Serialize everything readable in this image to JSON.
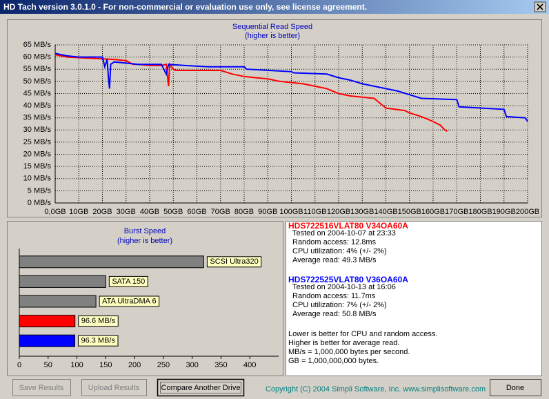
{
  "window": {
    "title": "HD Tach version 3.0.1.0  - For non-commercial or evaluation use only, see license agreement."
  },
  "chart_data": [
    {
      "type": "line",
      "title": "Sequential Read Speed",
      "subtitle": "(higher is better)",
      "xlim": [
        0,
        200
      ],
      "ylim": [
        0,
        65
      ],
      "grid": true,
      "xticks": [
        {
          "value": 0,
          "label": "0,0GB"
        },
        {
          "value": 10,
          "label": "10GB"
        },
        {
          "value": 20,
          "label": "20GB"
        },
        {
          "value": 30,
          "label": "30GB"
        },
        {
          "value": 40,
          "label": "40GB"
        },
        {
          "value": 50,
          "label": "50GB"
        },
        {
          "value": 60,
          "label": "60GB"
        },
        {
          "value": 70,
          "label": "70GB"
        },
        {
          "value": 80,
          "label": "80GB"
        },
        {
          "value": 90,
          "label": "90GB"
        },
        {
          "value": 100,
          "label": "100GB"
        },
        {
          "value": 110,
          "label": "110GB"
        },
        {
          "value": 120,
          "label": "120GB"
        },
        {
          "value": 130,
          "label": "130GB"
        },
        {
          "value": 140,
          "label": "140GB"
        },
        {
          "value": 150,
          "label": "150GB"
        },
        {
          "value": 160,
          "label": "160GB"
        },
        {
          "value": 170,
          "label": "170GB"
        },
        {
          "value": 180,
          "label": "180GB"
        },
        {
          "value": 190,
          "label": "190GB"
        },
        {
          "value": 200,
          "label": "200GB"
        }
      ],
      "yticks": [
        {
          "value": 0,
          "label": "0 MB/s"
        },
        {
          "value": 5,
          "label": "5 MB/s"
        },
        {
          "value": 10,
          "label": "10 MB/s"
        },
        {
          "value": 15,
          "label": "15 MB/s"
        },
        {
          "value": 20,
          "label": "20 MB/s"
        },
        {
          "value": 25,
          "label": "25 MB/s"
        },
        {
          "value": 30,
          "label": "30 MB/s"
        },
        {
          "value": 35,
          "label": "35 MB/s"
        },
        {
          "value": 40,
          "label": "40 MB/s"
        },
        {
          "value": 45,
          "label": "45 MB/s"
        },
        {
          "value": 50,
          "label": "50 MB/s"
        },
        {
          "value": 55,
          "label": "55 MB/s"
        },
        {
          "value": 60,
          "label": "60 MB/s"
        },
        {
          "value": 65,
          "label": "65 MB/s"
        }
      ],
      "series": [
        {
          "name": "HDS722516VLAT80 V34OA60A",
          "color": "#ff0000",
          "x": [
            0,
            5,
            15,
            25,
            30,
            33,
            35,
            40,
            45,
            47,
            48,
            48.5,
            50,
            51,
            70,
            75,
            80,
            85,
            90,
            95,
            100,
            105,
            110,
            115,
            120,
            125,
            130,
            135,
            140,
            148,
            150,
            155,
            160,
            163,
            165,
            166
          ],
          "values": [
            61,
            60,
            59.5,
            59,
            58.5,
            57,
            57,
            56.5,
            56.5,
            57,
            48,
            57,
            55,
            54.5,
            54.5,
            53,
            52,
            51.5,
            51,
            50,
            49.5,
            49,
            48,
            47,
            45,
            44,
            43.5,
            43,
            39,
            38,
            37,
            35.5,
            33.5,
            32,
            30,
            29.5
          ]
        },
        {
          "name": "HDS722525VLAT80 V36OA60A",
          "color": "#0000ff",
          "x": [
            0,
            5,
            10,
            20,
            21,
            22,
            22.5,
            23,
            23.5,
            25,
            30,
            35,
            40,
            45,
            47,
            48,
            55,
            65,
            80,
            81,
            100,
            101,
            115,
            120,
            125,
            130,
            135,
            140,
            145,
            150,
            155,
            170,
            171,
            190,
            191,
            199,
            200
          ],
          "values": [
            61.5,
            60.5,
            60,
            60,
            56,
            59,
            52,
            47,
            57,
            58,
            57.5,
            57,
            57,
            57,
            53,
            57,
            56.5,
            56,
            56,
            55,
            54,
            53.5,
            53,
            51.5,
            50.5,
            49,
            48,
            47,
            46,
            44.5,
            43,
            42.5,
            39.5,
            38.5,
            35.5,
            35,
            33.5
          ]
        }
      ]
    },
    {
      "type": "bar",
      "orientation": "horizontal",
      "title": "Burst Speed",
      "subtitle": "(higher is better)",
      "categories": [
        "SCSI Ultra320",
        "SATA 150",
        "ATA UltraDMA 6",
        null,
        null
      ],
      "values": [
        320,
        150,
        133,
        96.6,
        96.3
      ],
      "value_labels": [
        null,
        null,
        null,
        "96.6 MB/s",
        "96.3 MB/s"
      ],
      "colors": [
        "#808080",
        "#808080",
        "#808080",
        "#ff0000",
        "#0000ff"
      ],
      "xlim": [
        0,
        450
      ],
      "xticks": [
        0,
        50,
        100,
        150,
        200,
        250,
        300,
        350,
        400
      ]
    }
  ],
  "info": {
    "drives": [
      {
        "lines": [
          "Tested on 2004-10-07 at 23:33",
          "Random access: 12.8ms",
          "CPU utilization: 4% (+/- 2%)",
          "Average read: 49.3 MB/s"
        ]
      },
      {
        "lines": [
          "Tested on 2004-10-13 at 16:06",
          "Random access: 11.7ms",
          "CPU utilization: 7% (+/- 2%)",
          "Average read: 50.8 MB/s"
        ]
      }
    ],
    "notes": [
      "Lower is better for CPU and random access.",
      "Higher is better for average read.",
      "MB/s = 1,000,000 bytes per second.",
      "GB = 1,000,000,000 bytes."
    ]
  },
  "buttons": {
    "save": "Save Results",
    "upload": "Upload Results",
    "compare": "Compare Another Drive",
    "done": "Done"
  },
  "copyright": "Copyright (C) 2004 Simpli Software, Inc. www.simplisoftware.com"
}
